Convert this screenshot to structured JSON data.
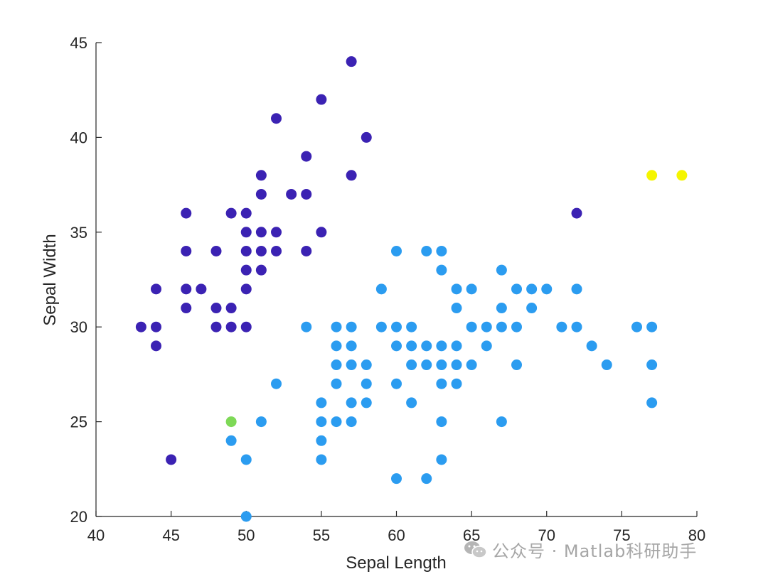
{
  "chart_data": {
    "type": "scatter",
    "title": "",
    "xlabel": "Sepal Length",
    "ylabel": "Sepal Width",
    "xlim": [
      40,
      80
    ],
    "ylim": [
      20,
      45
    ],
    "xticks": [
      40,
      45,
      50,
      55,
      60,
      65,
      70,
      75,
      80
    ],
    "yticks": [
      20,
      25,
      30,
      35,
      40,
      45
    ],
    "grid": false,
    "legend": "none",
    "series": [
      {
        "color": "#3b22b3",
        "points": [
          [
            57,
            44
          ],
          [
            55,
            42
          ],
          [
            52,
            41
          ],
          [
            58,
            40
          ],
          [
            54,
            39
          ],
          [
            57,
            38
          ],
          [
            51,
            38
          ],
          [
            51,
            37
          ],
          [
            53,
            37
          ],
          [
            54,
            37
          ],
          [
            46,
            36
          ],
          [
            49,
            36
          ],
          [
            50,
            36
          ],
          [
            72,
            36
          ],
          [
            50,
            35
          ],
          [
            51,
            35
          ],
          [
            52,
            35
          ],
          [
            55,
            35
          ],
          [
            46,
            34
          ],
          [
            48,
            34
          ],
          [
            50,
            34
          ],
          [
            51,
            34
          ],
          [
            52,
            34
          ],
          [
            54,
            34
          ],
          [
            50,
            33
          ],
          [
            51,
            33
          ],
          [
            44,
            32
          ],
          [
            46,
            32
          ],
          [
            47,
            32
          ],
          [
            50,
            32
          ],
          [
            46,
            31
          ],
          [
            48,
            31
          ],
          [
            49,
            31
          ],
          [
            43,
            30
          ],
          [
            44,
            30
          ],
          [
            48,
            30
          ],
          [
            49,
            30
          ],
          [
            50,
            30
          ],
          [
            44,
            29
          ],
          [
            45,
            23
          ]
        ]
      },
      {
        "color": "#2b9cf0",
        "points": [
          [
            60,
            34
          ],
          [
            62,
            34
          ],
          [
            63,
            34
          ],
          [
            63,
            33
          ],
          [
            67,
            33
          ],
          [
            59,
            32
          ],
          [
            64,
            32
          ],
          [
            65,
            32
          ],
          [
            68,
            32
          ],
          [
            69,
            32
          ],
          [
            70,
            32
          ],
          [
            72,
            32
          ],
          [
            64,
            31
          ],
          [
            67,
            31
          ],
          [
            69,
            31
          ],
          [
            54,
            30
          ],
          [
            56,
            30
          ],
          [
            57,
            30
          ],
          [
            59,
            30
          ],
          [
            60,
            30
          ],
          [
            61,
            30
          ],
          [
            65,
            30
          ],
          [
            66,
            30
          ],
          [
            67,
            30
          ],
          [
            68,
            30
          ],
          [
            71,
            30
          ],
          [
            72,
            30
          ],
          [
            76,
            30
          ],
          [
            77,
            30
          ],
          [
            56,
            29
          ],
          [
            57,
            29
          ],
          [
            60,
            29
          ],
          [
            61,
            29
          ],
          [
            62,
            29
          ],
          [
            63,
            29
          ],
          [
            64,
            29
          ],
          [
            66,
            29
          ],
          [
            73,
            29
          ],
          [
            56,
            28
          ],
          [
            57,
            28
          ],
          [
            58,
            28
          ],
          [
            61,
            28
          ],
          [
            62,
            28
          ],
          [
            63,
            28
          ],
          [
            64,
            28
          ],
          [
            65,
            28
          ],
          [
            68,
            28
          ],
          [
            74,
            28
          ],
          [
            77,
            28
          ],
          [
            52,
            27
          ],
          [
            56,
            27
          ],
          [
            58,
            27
          ],
          [
            60,
            27
          ],
          [
            63,
            27
          ],
          [
            64,
            27
          ],
          [
            55,
            26
          ],
          [
            57,
            26
          ],
          [
            58,
            26
          ],
          [
            61,
            26
          ],
          [
            77,
            26
          ],
          [
            51,
            25
          ],
          [
            55,
            25
          ],
          [
            56,
            25
          ],
          [
            57,
            25
          ],
          [
            63,
            25
          ],
          [
            67,
            25
          ],
          [
            49,
            24
          ],
          [
            55,
            24
          ],
          [
            50,
            23
          ],
          [
            55,
            23
          ],
          [
            63,
            23
          ],
          [
            60,
            22
          ],
          [
            62,
            22
          ],
          [
            50,
            20
          ]
        ]
      },
      {
        "color": "#7ed957",
        "points": [
          [
            49,
            25
          ]
        ]
      },
      {
        "color": "#f5f500",
        "points": [
          [
            77,
            38
          ],
          [
            79,
            38
          ]
        ]
      }
    ]
  },
  "watermark": {
    "icon": "wechat-icon",
    "text": "公众号 · Matlab科研助手"
  }
}
